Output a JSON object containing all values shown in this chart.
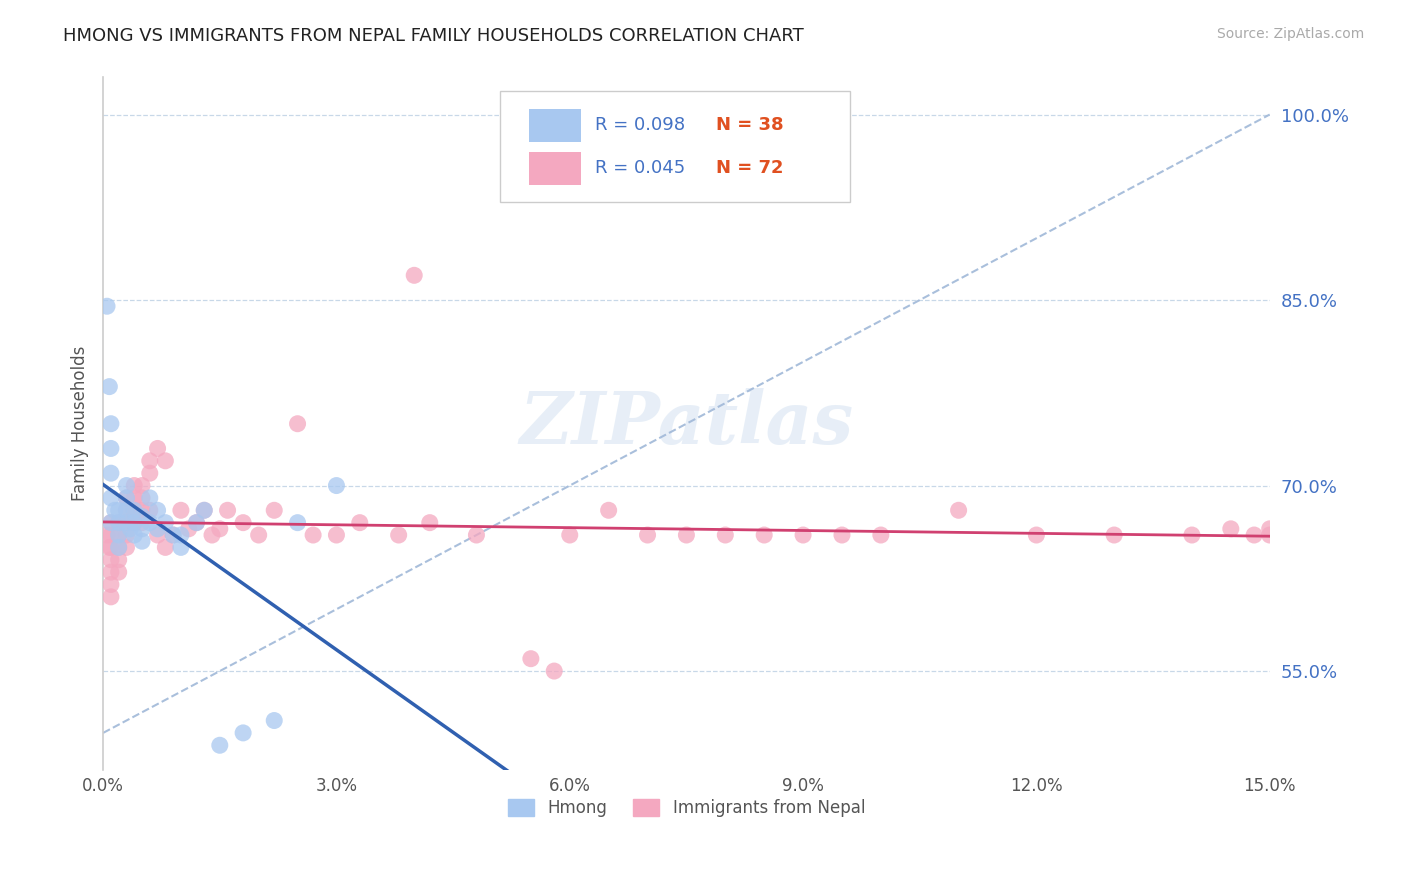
{
  "title": "HMONG VS IMMIGRANTS FROM NEPAL FAMILY HOUSEHOLDS CORRELATION CHART",
  "source": "Source: ZipAtlas.com",
  "ylabel": "Family Households",
  "xlim": [
    0.0,
    0.15
  ],
  "ylim": [
    0.47,
    1.03
  ],
  "yticks": [
    0.55,
    0.7,
    0.85,
    1.0
  ],
  "ytick_labels": [
    "55.0%",
    "70.0%",
    "85.0%",
    "100.0%"
  ],
  "xticks": [
    0.0,
    0.03,
    0.06,
    0.09,
    0.12,
    0.15
  ],
  "xtick_labels": [
    "0.0%",
    "3.0%",
    "6.0%",
    "9.0%",
    "12.0%",
    "15.0%"
  ],
  "hmong_color": "#a8c8f0",
  "nepal_color": "#f4a8c0",
  "hmong_line_color": "#3060b0",
  "nepal_line_color": "#d04070",
  "ref_line_color": "#a0b8d8",
  "legend_R_color": "#4472c4",
  "legend_N_color": "#e05020",
  "legend_label_hmong": "Hmong",
  "legend_label_nepal": "Immigrants from Nepal",
  "background_color": "#ffffff",
  "grid_color": "#c8d8e8",
  "title_color": "#222222",
  "axis_label_color": "#555555",
  "tick_color": "#555555",
  "source_color": "#aaaaaa",
  "hmong_x": [
    0.0005,
    0.0008,
    0.001,
    0.001,
    0.001,
    0.001,
    0.001,
    0.0015,
    0.002,
    0.002,
    0.002,
    0.002,
    0.003,
    0.003,
    0.003,
    0.003,
    0.0035,
    0.004,
    0.004,
    0.004,
    0.005,
    0.005,
    0.005,
    0.006,
    0.006,
    0.007,
    0.007,
    0.008,
    0.009,
    0.01,
    0.01,
    0.012,
    0.013,
    0.015,
    0.018,
    0.022,
    0.025,
    0.03
  ],
  "hmong_y": [
    0.845,
    0.78,
    0.75,
    0.73,
    0.71,
    0.69,
    0.67,
    0.68,
    0.68,
    0.67,
    0.66,
    0.65,
    0.7,
    0.69,
    0.68,
    0.67,
    0.665,
    0.68,
    0.67,
    0.66,
    0.675,
    0.665,
    0.655,
    0.69,
    0.67,
    0.68,
    0.665,
    0.67,
    0.66,
    0.66,
    0.65,
    0.67,
    0.68,
    0.49,
    0.5,
    0.51,
    0.67,
    0.7
  ],
  "nepal_x": [
    0.0005,
    0.0008,
    0.001,
    0.001,
    0.001,
    0.001,
    0.001,
    0.001,
    0.001,
    0.002,
    0.002,
    0.002,
    0.002,
    0.002,
    0.003,
    0.003,
    0.003,
    0.003,
    0.003,
    0.004,
    0.004,
    0.004,
    0.004,
    0.005,
    0.005,
    0.005,
    0.005,
    0.006,
    0.006,
    0.006,
    0.007,
    0.007,
    0.008,
    0.008,
    0.009,
    0.01,
    0.011,
    0.012,
    0.013,
    0.014,
    0.015,
    0.016,
    0.018,
    0.02,
    0.022,
    0.025,
    0.027,
    0.03,
    0.033,
    0.038,
    0.04,
    0.042,
    0.048,
    0.055,
    0.058,
    0.06,
    0.065,
    0.07,
    0.075,
    0.08,
    0.085,
    0.09,
    0.095,
    0.1,
    0.11,
    0.12,
    0.13,
    0.14,
    0.145,
    0.148,
    0.15,
    0.15
  ],
  "nepal_y": [
    0.66,
    0.65,
    0.67,
    0.66,
    0.65,
    0.64,
    0.63,
    0.62,
    0.61,
    0.67,
    0.66,
    0.65,
    0.64,
    0.63,
    0.69,
    0.68,
    0.67,
    0.66,
    0.65,
    0.7,
    0.69,
    0.68,
    0.67,
    0.7,
    0.69,
    0.68,
    0.67,
    0.72,
    0.71,
    0.68,
    0.73,
    0.66,
    0.72,
    0.65,
    0.66,
    0.68,
    0.665,
    0.67,
    0.68,
    0.66,
    0.665,
    0.68,
    0.67,
    0.66,
    0.68,
    0.75,
    0.66,
    0.66,
    0.67,
    0.66,
    0.87,
    0.67,
    0.66,
    0.56,
    0.55,
    0.66,
    0.68,
    0.66,
    0.66,
    0.66,
    0.66,
    0.66,
    0.66,
    0.66,
    0.68,
    0.66,
    0.66,
    0.66,
    0.665,
    0.66,
    0.665,
    0.66
  ]
}
